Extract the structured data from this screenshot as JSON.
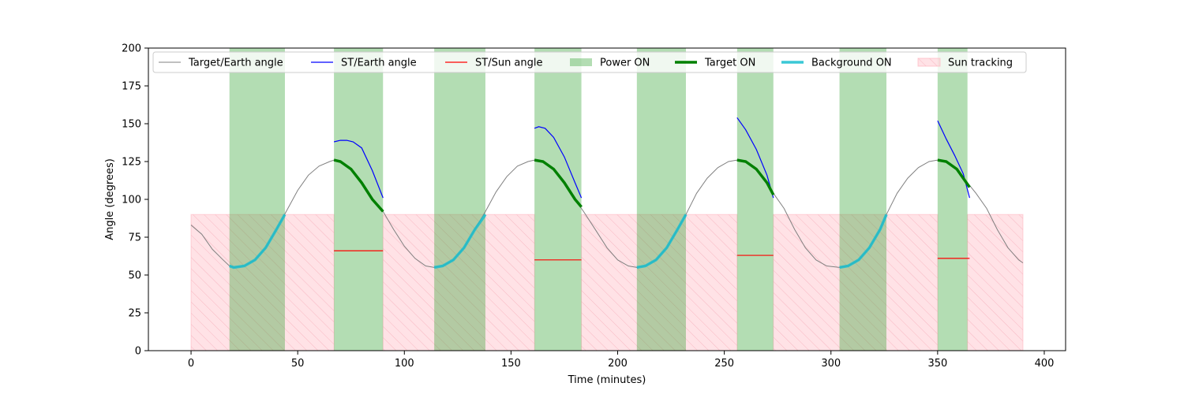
{
  "chart_data": {
    "type": "line",
    "title": "",
    "xlabel": "Time (minutes)",
    "ylabel": "Angle (degrees)",
    "xlim": [
      -20,
      410
    ],
    "ylim": [
      0,
      200
    ],
    "xticks": [
      0,
      50,
      100,
      150,
      200,
      250,
      300,
      350,
      400
    ],
    "yticks": [
      0,
      25,
      50,
      75,
      100,
      125,
      150,
      175,
      200
    ],
    "grid": false,
    "legend_position": "top",
    "series": [
      {
        "name": "Target/Earth angle",
        "color": "#808080",
        "kind": "line",
        "points": [
          [
            0,
            83
          ],
          [
            5,
            77
          ],
          [
            10,
            67
          ],
          [
            15,
            60
          ],
          [
            18,
            56
          ],
          [
            20,
            55
          ],
          [
            25,
            56
          ],
          [
            30,
            60
          ],
          [
            35,
            68
          ],
          [
            40,
            80
          ],
          [
            45,
            93
          ],
          [
            50,
            106
          ],
          [
            55,
            116
          ],
          [
            60,
            122
          ],
          [
            65,
            125
          ],
          [
            67,
            126
          ],
          [
            70,
            125
          ],
          [
            75,
            120
          ],
          [
            80,
            111
          ],
          [
            85,
            100
          ],
          [
            90,
            92
          ],
          [
            95,
            80
          ],
          [
            100,
            69
          ],
          [
            105,
            61
          ],
          [
            110,
            56
          ],
          [
            114,
            55
          ],
          [
            118,
            56
          ],
          [
            123,
            60
          ],
          [
            128,
            68
          ],
          [
            133,
            80
          ],
          [
            138,
            92
          ],
          [
            143,
            105
          ],
          [
            148,
            115
          ],
          [
            153,
            122
          ],
          [
            158,
            125
          ],
          [
            161,
            126
          ],
          [
            165,
            125
          ],
          [
            170,
            120
          ],
          [
            175,
            111
          ],
          [
            180,
            100
          ],
          [
            184,
            92
          ],
          [
            190,
            79
          ],
          [
            195,
            68
          ],
          [
            200,
            60
          ],
          [
            205,
            56
          ],
          [
            209,
            55
          ],
          [
            213,
            56
          ],
          [
            218,
            60
          ],
          [
            223,
            68
          ],
          [
            228,
            80
          ],
          [
            232,
            90
          ],
          [
            237,
            104
          ],
          [
            242,
            114
          ],
          [
            247,
            121
          ],
          [
            252,
            125
          ],
          [
            256,
            126
          ],
          [
            260,
            125
          ],
          [
            265,
            120
          ],
          [
            270,
            111
          ],
          [
            273,
            104
          ],
          [
            278,
            94
          ],
          [
            283,
            80
          ],
          [
            288,
            68
          ],
          [
            293,
            60
          ],
          [
            298,
            56
          ],
          [
            304,
            55
          ],
          [
            308,
            56
          ],
          [
            313,
            60
          ],
          [
            318,
            68
          ],
          [
            323,
            80
          ],
          [
            326,
            90
          ],
          [
            331,
            104
          ],
          [
            336,
            114
          ],
          [
            341,
            121
          ],
          [
            346,
            125
          ],
          [
            350,
            126
          ],
          [
            354,
            125
          ],
          [
            359,
            120
          ],
          [
            364,
            111
          ],
          [
            368,
            104
          ],
          [
            373,
            94
          ],
          [
            378,
            80
          ],
          [
            383,
            68
          ],
          [
            388,
            60
          ],
          [
            390,
            58
          ]
        ]
      },
      {
        "name": "ST/Earth angle",
        "color": "#0000ff",
        "kind": "segments",
        "segments": [
          [
            [
              67,
              138
            ],
            [
              70,
              139
            ],
            [
              73,
              139
            ],
            [
              76,
              138
            ],
            [
              80,
              134
            ],
            [
              85,
              119
            ],
            [
              90,
              101
            ]
          ],
          [
            [
              161,
              147
            ],
            [
              163,
              148
            ],
            [
              166,
              147
            ],
            [
              170,
              141
            ],
            [
              175,
              128
            ],
            [
              180,
              111
            ],
            [
              183,
              101
            ]
          ],
          [
            [
              256,
              154
            ],
            [
              260,
              146
            ],
            [
              265,
              133
            ],
            [
              270,
              116
            ],
            [
              273,
              101
            ]
          ],
          [
            [
              350,
              152
            ],
            [
              354,
              140
            ],
            [
              358,
              129
            ],
            [
              362,
              117
            ],
            [
              365,
              101
            ]
          ]
        ]
      },
      {
        "name": "ST/Sun angle",
        "color": "#ff0000",
        "kind": "hlines",
        "lines": [
          [
            67,
            90,
            66
          ],
          [
            161,
            183,
            60
          ],
          [
            256,
            273,
            63
          ],
          [
            350,
            365,
            61
          ]
        ]
      },
      {
        "name": "Target ON",
        "color": "#008000",
        "kind": "segments",
        "segments": [
          [
            [
              67,
              126
            ],
            [
              70,
              125
            ],
            [
              75,
              120
            ],
            [
              80,
              111
            ],
            [
              85,
              100
            ],
            [
              90,
              92
            ]
          ],
          [
            [
              161,
              126
            ],
            [
              165,
              125
            ],
            [
              170,
              120
            ],
            [
              175,
              111
            ],
            [
              180,
              100
            ],
            [
              183,
              95
            ]
          ],
          [
            [
              256,
              126
            ],
            [
              260,
              125
            ],
            [
              265,
              120
            ],
            [
              270,
              111
            ],
            [
              273,
              103
            ]
          ],
          [
            [
              350,
              126
            ],
            [
              354,
              125
            ],
            [
              359,
              120
            ],
            [
              362,
              114
            ],
            [
              365,
              108
            ]
          ]
        ]
      },
      {
        "name": "Background ON",
        "color": "#17becf",
        "kind": "segments",
        "segments": [
          [
            [
              18,
              56
            ],
            [
              20,
              55
            ],
            [
              25,
              56
            ],
            [
              30,
              60
            ],
            [
              35,
              68
            ],
            [
              40,
              80
            ],
            [
              44,
              90
            ]
          ],
          [
            [
              114,
              55
            ],
            [
              118,
              56
            ],
            [
              123,
              60
            ],
            [
              128,
              68
            ],
            [
              133,
              80
            ],
            [
              138,
              90
            ]
          ],
          [
            [
              209,
              55
            ],
            [
              213,
              56
            ],
            [
              218,
              60
            ],
            [
              223,
              68
            ],
            [
              228,
              80
            ],
            [
              232,
              90
            ]
          ],
          [
            [
              304,
              55
            ],
            [
              308,
              56
            ],
            [
              313,
              60
            ],
            [
              318,
              68
            ],
            [
              323,
              80
            ],
            [
              326,
              90
            ]
          ]
        ]
      }
    ],
    "power_on": {
      "name": "Power ON",
      "color": "#2ca02c",
      "intervals": [
        [
          18,
          44
        ],
        [
          67,
          90
        ],
        [
          114,
          138
        ],
        [
          161,
          183
        ],
        [
          209,
          232
        ],
        [
          256,
          273
        ],
        [
          304,
          326
        ],
        [
          350,
          364
        ]
      ]
    },
    "sun_tracking": {
      "name": "Sun tracking",
      "color": "#ffb6c1",
      "level": 90,
      "intervals": [
        [
          0,
          67
        ],
        [
          90,
          161
        ],
        [
          183,
          256
        ],
        [
          273,
          350
        ],
        [
          364,
          390
        ]
      ]
    },
    "legend": [
      "Target/Earth angle",
      "ST/Earth angle",
      "ST/Sun angle",
      "Power ON",
      "Target ON",
      "Background ON",
      "Sun tracking"
    ]
  }
}
